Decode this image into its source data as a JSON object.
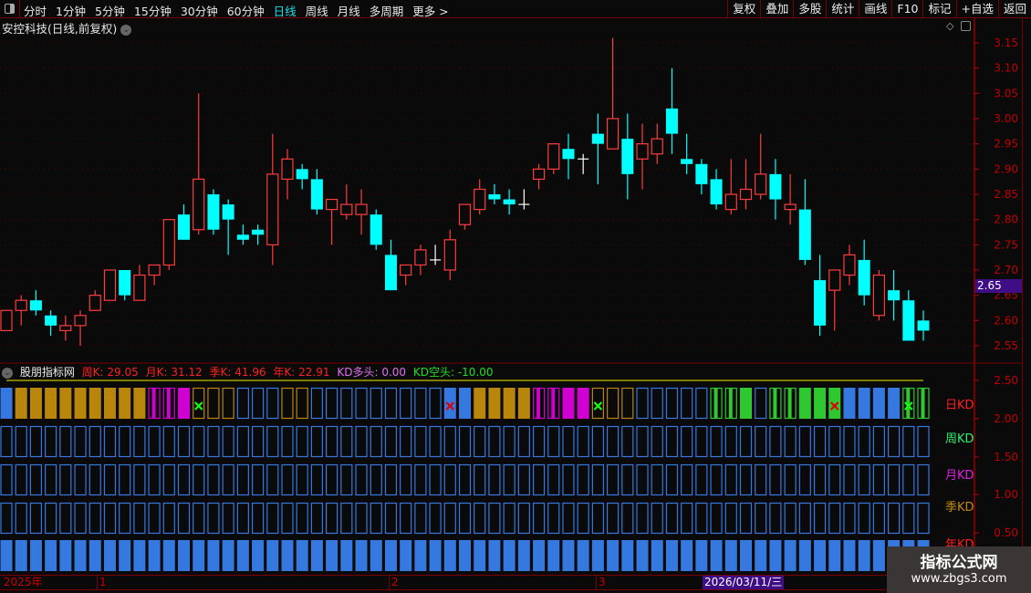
{
  "toolbar": {
    "periods": [
      "分时",
      "1分钟",
      "5分钟",
      "15分钟",
      "30分钟",
      "60分钟",
      "日线",
      "周线",
      "月线",
      "多周期",
      "更多 >"
    ],
    "active_period": "日线",
    "buttons": [
      "复权",
      "叠加",
      "多股",
      "统计",
      "画线",
      "F10",
      "标记",
      "+自选",
      "返回"
    ]
  },
  "main": {
    "title": "安控科技(日线,前复权)",
    "current_price": "2.65",
    "price_ticks": [
      "3.15",
      "3.10",
      "3.05",
      "3.00",
      "2.95",
      "2.90",
      "2.85",
      "2.80",
      "2.75",
      "2.70",
      "2.65",
      "2.60",
      "2.55"
    ]
  },
  "indicator": {
    "name": "股朋指标网",
    "week_k": "周K: 29.05",
    "month_k": "月K: 31.12",
    "season_k": "季K: 41.96",
    "year_k": "年K: 22.91",
    "kd_bull": "KD多头: 0.00",
    "kd_bear": "KD空头: -10.00",
    "axis_ticks": [
      "2.50",
      "2.00",
      "1.50",
      "1.00",
      "0.50"
    ],
    "row_labels": [
      {
        "text": "日KD",
        "color": "#ff2020"
      },
      {
        "text": "周KD",
        "color": "#30f070"
      },
      {
        "text": "月KD",
        "color": "#e020e0"
      },
      {
        "text": "季KD",
        "color": "#c08a10"
      },
      {
        "text": "年KD",
        "color": "#ff2020"
      }
    ],
    "daily_states": [
      "blue-fill",
      "gold-fill",
      "gold-fill",
      "gold-fill",
      "gold-fill",
      "gold-fill",
      "gold-fill",
      "gold-fill",
      "gold-fill",
      "gold-fill",
      "magenta-stripe",
      "magenta-stripe",
      "magenta-fill",
      "gold-outline-xgreen",
      "gold-outline",
      "gold-outline",
      "blue-outline",
      "blue-outline",
      "blue-outline",
      "gold-outline",
      "gold-outline",
      "blue-outline",
      "blue-outline",
      "blue-outline",
      "blue-outline",
      "blue-outline",
      "blue-outline",
      "blue-outline",
      "blue-outline",
      "blue-outline",
      "blue-fill-xred",
      "blue-fill",
      "gold-fill",
      "gold-fill",
      "gold-fill",
      "gold-fill",
      "magenta-stripe",
      "magenta-stripe",
      "magenta-fill",
      "magenta-fill",
      "gold-outline-xgreen",
      "gold-outline",
      "gold-outline",
      "blue-outline",
      "blue-outline",
      "blue-outline",
      "blue-outline",
      "blue-outline",
      "green-stripe",
      "green-stripe",
      "green-fill",
      "blue-outline",
      "green-stripe",
      "green-stripe",
      "green-fill",
      "green-fill",
      "green-fill-xred",
      "blue-fill",
      "blue-fill",
      "blue-fill",
      "blue-fill",
      "green-stripe-xgreen",
      "green-stripe"
    ],
    "weekly_state": "blue-outline",
    "monthly_state": "blue-outline",
    "seasonal_state": "blue-outline",
    "yearly_state": "blue-fill"
  },
  "colors": {
    "up": "#ff3c3c",
    "down": "#00ffff",
    "doji": "#ffffff",
    "blue": "#3478e0",
    "gold": "#b8860b",
    "magenta": "#d000d0",
    "green": "#30c830",
    "grid": "#5a0000",
    "axis": "#c00000"
  },
  "timeline": {
    "labels": [
      "2025年",
      "1",
      "2",
      "3"
    ],
    "cursor_date": "2026/03/11/三"
  },
  "watermark": {
    "title": "指标公式网",
    "url": "www.zbgs3.com"
  },
  "chart_data": {
    "type": "candlestick",
    "ylim": [
      2.55,
      3.15
    ],
    "ohlc": [
      [
        2.58,
        2.62,
        2.58,
        2.62
      ],
      [
        2.62,
        2.65,
        2.59,
        2.64
      ],
      [
        2.64,
        2.66,
        2.61,
        2.62
      ],
      [
        2.61,
        2.62,
        2.57,
        2.59
      ],
      [
        2.58,
        2.61,
        2.56,
        2.59
      ],
      [
        2.59,
        2.62,
        2.55,
        2.61
      ],
      [
        2.62,
        2.66,
        2.62,
        2.65
      ],
      [
        2.64,
        2.7,
        2.64,
        2.7
      ],
      [
        2.7,
        2.7,
        2.64,
        2.65
      ],
      [
        2.64,
        2.71,
        2.64,
        2.69
      ],
      [
        2.69,
        2.71,
        2.67,
        2.71
      ],
      [
        2.71,
        2.8,
        2.7,
        2.8
      ],
      [
        2.81,
        2.83,
        2.76,
        2.76
      ],
      [
        2.78,
        3.05,
        2.77,
        2.88
      ],
      [
        2.85,
        2.86,
        2.77,
        2.78
      ],
      [
        2.83,
        2.84,
        2.73,
        2.8
      ],
      [
        2.77,
        2.79,
        2.75,
        2.76
      ],
      [
        2.78,
        2.79,
        2.75,
        2.77
      ],
      [
        2.75,
        2.97,
        2.71,
        2.89
      ],
      [
        2.88,
        2.94,
        2.84,
        2.92
      ],
      [
        2.9,
        2.91,
        2.86,
        2.88
      ],
      [
        2.88,
        2.9,
        2.81,
        2.82
      ],
      [
        2.82,
        2.84,
        2.75,
        2.84
      ],
      [
        2.81,
        2.87,
        2.8,
        2.83
      ],
      [
        2.81,
        2.86,
        2.77,
        2.83
      ],
      [
        2.81,
        2.82,
        2.74,
        2.75
      ],
      [
        2.73,
        2.76,
        2.66,
        2.66
      ],
      [
        2.69,
        2.71,
        2.67,
        2.71
      ],
      [
        2.71,
        2.75,
        2.69,
        2.74
      ],
      [
        2.72,
        2.75,
        2.71,
        2.72
      ],
      [
        2.7,
        2.78,
        2.68,
        2.76
      ],
      [
        2.79,
        2.83,
        2.78,
        2.83
      ],
      [
        2.82,
        2.88,
        2.81,
        2.86
      ],
      [
        2.85,
        2.87,
        2.83,
        2.84
      ],
      [
        2.84,
        2.86,
        2.81,
        2.83
      ],
      [
        2.83,
        2.86,
        2.82,
        2.83
      ],
      [
        2.88,
        2.91,
        2.86,
        2.9
      ],
      [
        2.9,
        2.95,
        2.89,
        2.95
      ],
      [
        2.94,
        2.97,
        2.88,
        2.92
      ],
      [
        2.92,
        2.93,
        2.89,
        2.92
      ],
      [
        2.97,
        3.01,
        2.87,
        2.95
      ],
      [
        2.94,
        3.16,
        2.94,
        3.0
      ],
      [
        2.96,
        3.01,
        2.84,
        2.89
      ],
      [
        2.92,
        2.99,
        2.86,
        2.95
      ],
      [
        2.93,
        2.99,
        2.91,
        2.96
      ],
      [
        3.02,
        3.1,
        2.93,
        2.97
      ],
      [
        2.92,
        2.97,
        2.89,
        2.91
      ],
      [
        2.91,
        2.92,
        2.85,
        2.87
      ],
      [
        2.88,
        2.9,
        2.82,
        2.83
      ],
      [
        2.82,
        2.92,
        2.81,
        2.85
      ],
      [
        2.84,
        2.92,
        2.82,
        2.86
      ],
      [
        2.85,
        2.97,
        2.84,
        2.89
      ],
      [
        2.89,
        2.92,
        2.8,
        2.84
      ],
      [
        2.82,
        2.89,
        2.79,
        2.83
      ],
      [
        2.82,
        2.88,
        2.71,
        2.72
      ],
      [
        2.68,
        2.73,
        2.57,
        2.59
      ],
      [
        2.66,
        2.7,
        2.58,
        2.7
      ],
      [
        2.69,
        2.75,
        2.67,
        2.73
      ],
      [
        2.72,
        2.76,
        2.63,
        2.65
      ],
      [
        2.61,
        2.7,
        2.6,
        2.69
      ],
      [
        2.66,
        2.7,
        2.6,
        2.64
      ],
      [
        2.64,
        2.66,
        2.56,
        2.56
      ],
      [
        2.6,
        2.62,
        2.56,
        2.58
      ]
    ]
  }
}
